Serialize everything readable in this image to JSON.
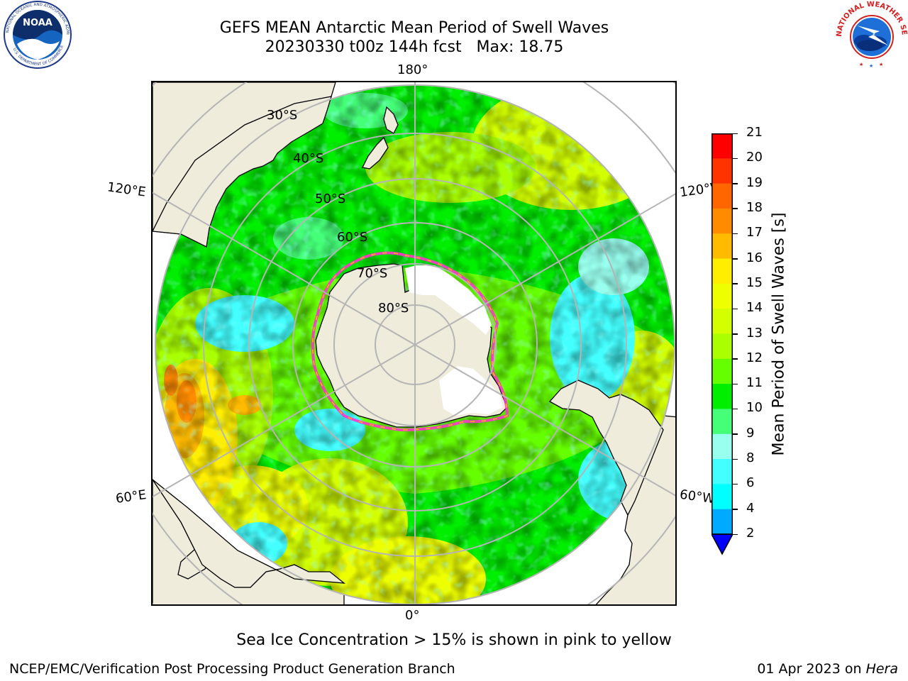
{
  "header": {
    "title_line1": "GEFS MEAN Antarctic Mean Period of Swell Waves",
    "title_line2": "20230330 t00z 144h fcst   Max: 18.75",
    "noaa_logo_text": "NOAA",
    "noaa_ring_text": "NATIONAL OCEANIC AND ATMOSPHERIC ADMINISTRATION",
    "noaa_ring_text_bottom": "U.S. DEPARTMENT OF COMMERCE",
    "nws_logo_ring_text": "NATIONAL WEATHER SERVICE"
  },
  "map": {
    "projection": "south-polar-stereographic",
    "lon_labels": {
      "top": "180°",
      "bottom": "0°",
      "upper_left": "120°E",
      "upper_right": "120°W",
      "lower_left": "60°E",
      "lower_right": "60°W"
    },
    "lat_labels": [
      "30°S",
      "40°S",
      "50°S",
      "60°S",
      "70°S",
      "80°S"
    ],
    "colors": {
      "land": "#efecdc",
      "ocean_nodata": "#ffffff",
      "graticule": "#b5b5b5",
      "coastline": "#000000"
    }
  },
  "colorbar": {
    "title": "Mean Period of Swell Waves [s]",
    "ticks": [
      "21",
      "20",
      "19",
      "18",
      "17",
      "16",
      "15",
      "14",
      "13",
      "12",
      "11",
      "10",
      "9",
      "8",
      "6",
      "4",
      "2"
    ],
    "bands": [
      {
        "range": "20-21",
        "color": "#ff0000"
      },
      {
        "range": "19-20",
        "color": "#ff3300"
      },
      {
        "range": "18-19",
        "color": "#ff6600"
      },
      {
        "range": "17-18",
        "color": "#ff8c00"
      },
      {
        "range": "16-17",
        "color": "#ffbb00"
      },
      {
        "range": "15-16",
        "color": "#ffee00"
      },
      {
        "range": "14-15",
        "color": "#eeff00"
      },
      {
        "range": "13-14",
        "color": "#d4ff00"
      },
      {
        "range": "12-13",
        "color": "#aaff00"
      },
      {
        "range": "11-12",
        "color": "#66ff00"
      },
      {
        "range": "10-11",
        "color": "#00ee00"
      },
      {
        "range": "9-10",
        "color": "#44ff77"
      },
      {
        "range": "8-9",
        "color": "#99ffee"
      },
      {
        "range": "6-8",
        "color": "#44ffff"
      },
      {
        "range": "4-6",
        "color": "#00ffff"
      },
      {
        "range": "2-4",
        "color": "#00aaff"
      },
      {
        "range": "<2",
        "color": "#0000ff"
      }
    ]
  },
  "footer": {
    "caption": "Sea Ice Concentration > 15% is shown in pink to yellow",
    "credit": "NCEP/EMC/Verification Post Processing Product Generation Branch",
    "date": "01 Apr 2023 on",
    "machine": "Hera"
  }
}
